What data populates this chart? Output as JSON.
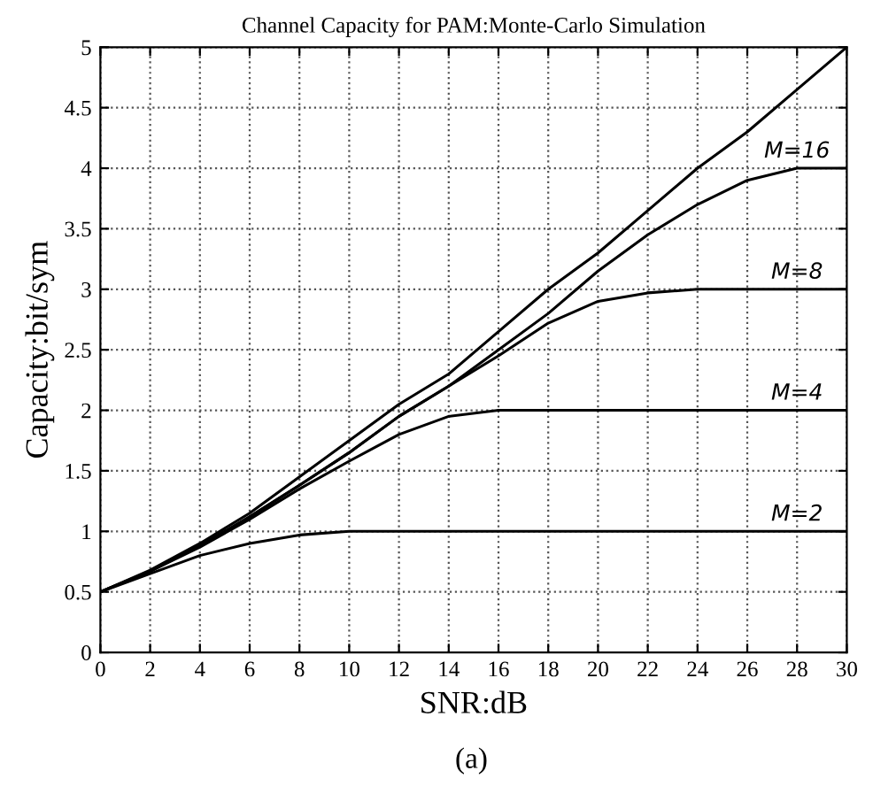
{
  "chart_data": {
    "type": "line",
    "title": "Channel Capacity for PAM:Monte-Carlo Simulation",
    "xlabel": "SNR:dB",
    "ylabel": "Capacity:bit/sym",
    "annotations": [
      "(a)"
    ],
    "x": [
      0,
      2,
      4,
      6,
      8,
      10,
      12,
      14,
      16,
      18,
      20,
      22,
      24,
      26,
      28,
      30
    ],
    "series": [
      {
        "color": "#000000",
        "values": [
          0.5,
          0.68,
          0.9,
          1.15,
          1.45,
          1.75,
          2.05,
          2.3,
          2.65,
          3.0,
          3.3,
          3.65,
          4.0,
          4.3,
          4.65,
          5.0
        ]
      },
      {
        "name": "M=16",
        "color": "#000000",
        "values": [
          0.5,
          0.67,
          0.88,
          1.12,
          1.38,
          1.65,
          1.95,
          2.2,
          2.5,
          2.8,
          3.15,
          3.45,
          3.7,
          3.9,
          4.0,
          4.0
        ]
      },
      {
        "name": "M=8",
        "color": "#000000",
        "values": [
          0.5,
          0.67,
          0.88,
          1.12,
          1.38,
          1.65,
          1.95,
          2.2,
          2.45,
          2.72,
          2.9,
          2.97,
          3.0,
          3.0,
          3.0,
          3.0
        ]
      },
      {
        "name": "M=4",
        "color": "#000000",
        "values": [
          0.5,
          0.67,
          0.87,
          1.1,
          1.35,
          1.58,
          1.8,
          1.95,
          2.0,
          2.0,
          2.0,
          2.0,
          2.0,
          2.0,
          2.0,
          2.0
        ]
      },
      {
        "name": "M=2",
        "color": "#000000",
        "values": [
          0.5,
          0.65,
          0.8,
          0.9,
          0.97,
          1.0,
          1.0,
          1.0,
          1.0,
          1.0,
          1.0,
          1.0,
          1.0,
          1.0,
          1.0,
          1.0
        ]
      }
    ],
    "xlim": [
      0,
      30
    ],
    "xticks": [
      0,
      2,
      4,
      6,
      8,
      10,
      12,
      14,
      16,
      18,
      20,
      22,
      24,
      26,
      28,
      30
    ],
    "ylim": [
      0,
      5
    ],
    "yticks": [
      0,
      0.5,
      1,
      1.5,
      2,
      2.5,
      3,
      3.5,
      4,
      4.5,
      5
    ],
    "grid": true,
    "legend": false,
    "marker": "none",
    "line_style": "solid"
  }
}
